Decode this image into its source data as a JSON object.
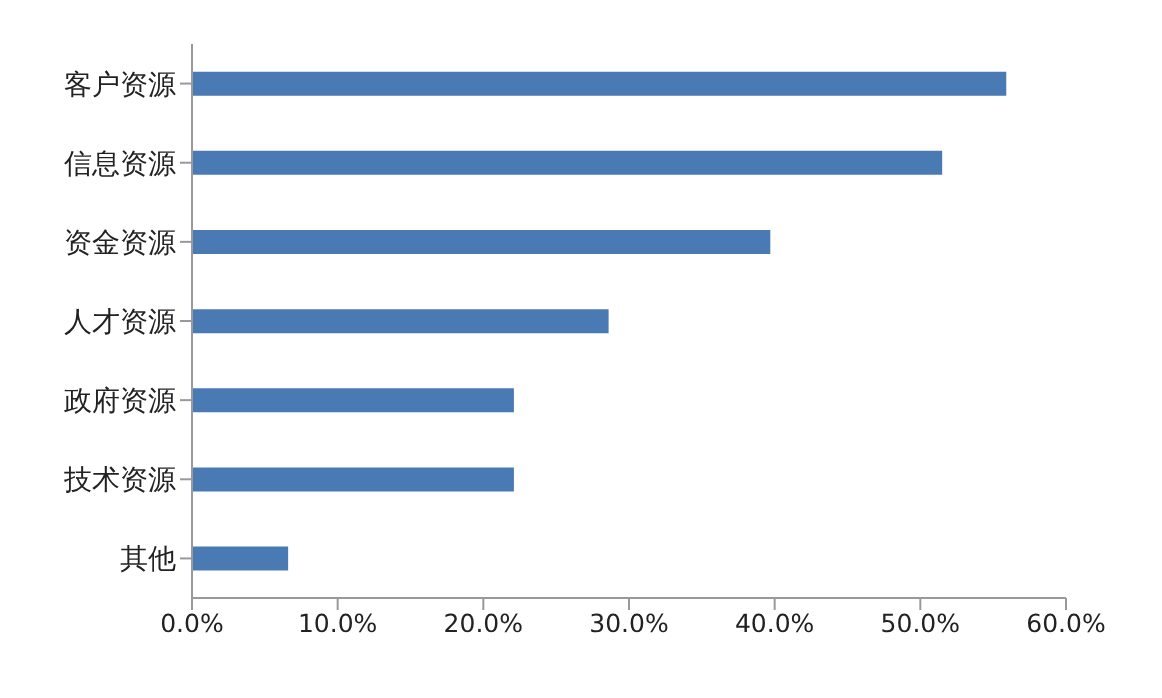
{
  "chart_data": {
    "type": "bar",
    "orientation": "horizontal",
    "categories": [
      "客户资源",
      "信息资源",
      "资金资源",
      "人才资源",
      "政府资源",
      "技术资源",
      "其他"
    ],
    "values": [
      55.9,
      51.5,
      39.7,
      28.6,
      22.1,
      22.1,
      6.6
    ],
    "color": "#4a7ab4",
    "xlim": [
      0,
      60
    ],
    "xticks": [
      {
        "value": 0,
        "label": "0.0%"
      },
      {
        "value": 10,
        "label": "10.0%"
      },
      {
        "value": 20,
        "label": "20.0%"
      },
      {
        "value": 30,
        "label": "30.0%"
      },
      {
        "value": 40,
        "label": "40.0%"
      },
      {
        "value": 50,
        "label": "50.0%"
      },
      {
        "value": 60,
        "label": "60.0%"
      }
    ],
    "grid": false,
    "legend": false
  }
}
